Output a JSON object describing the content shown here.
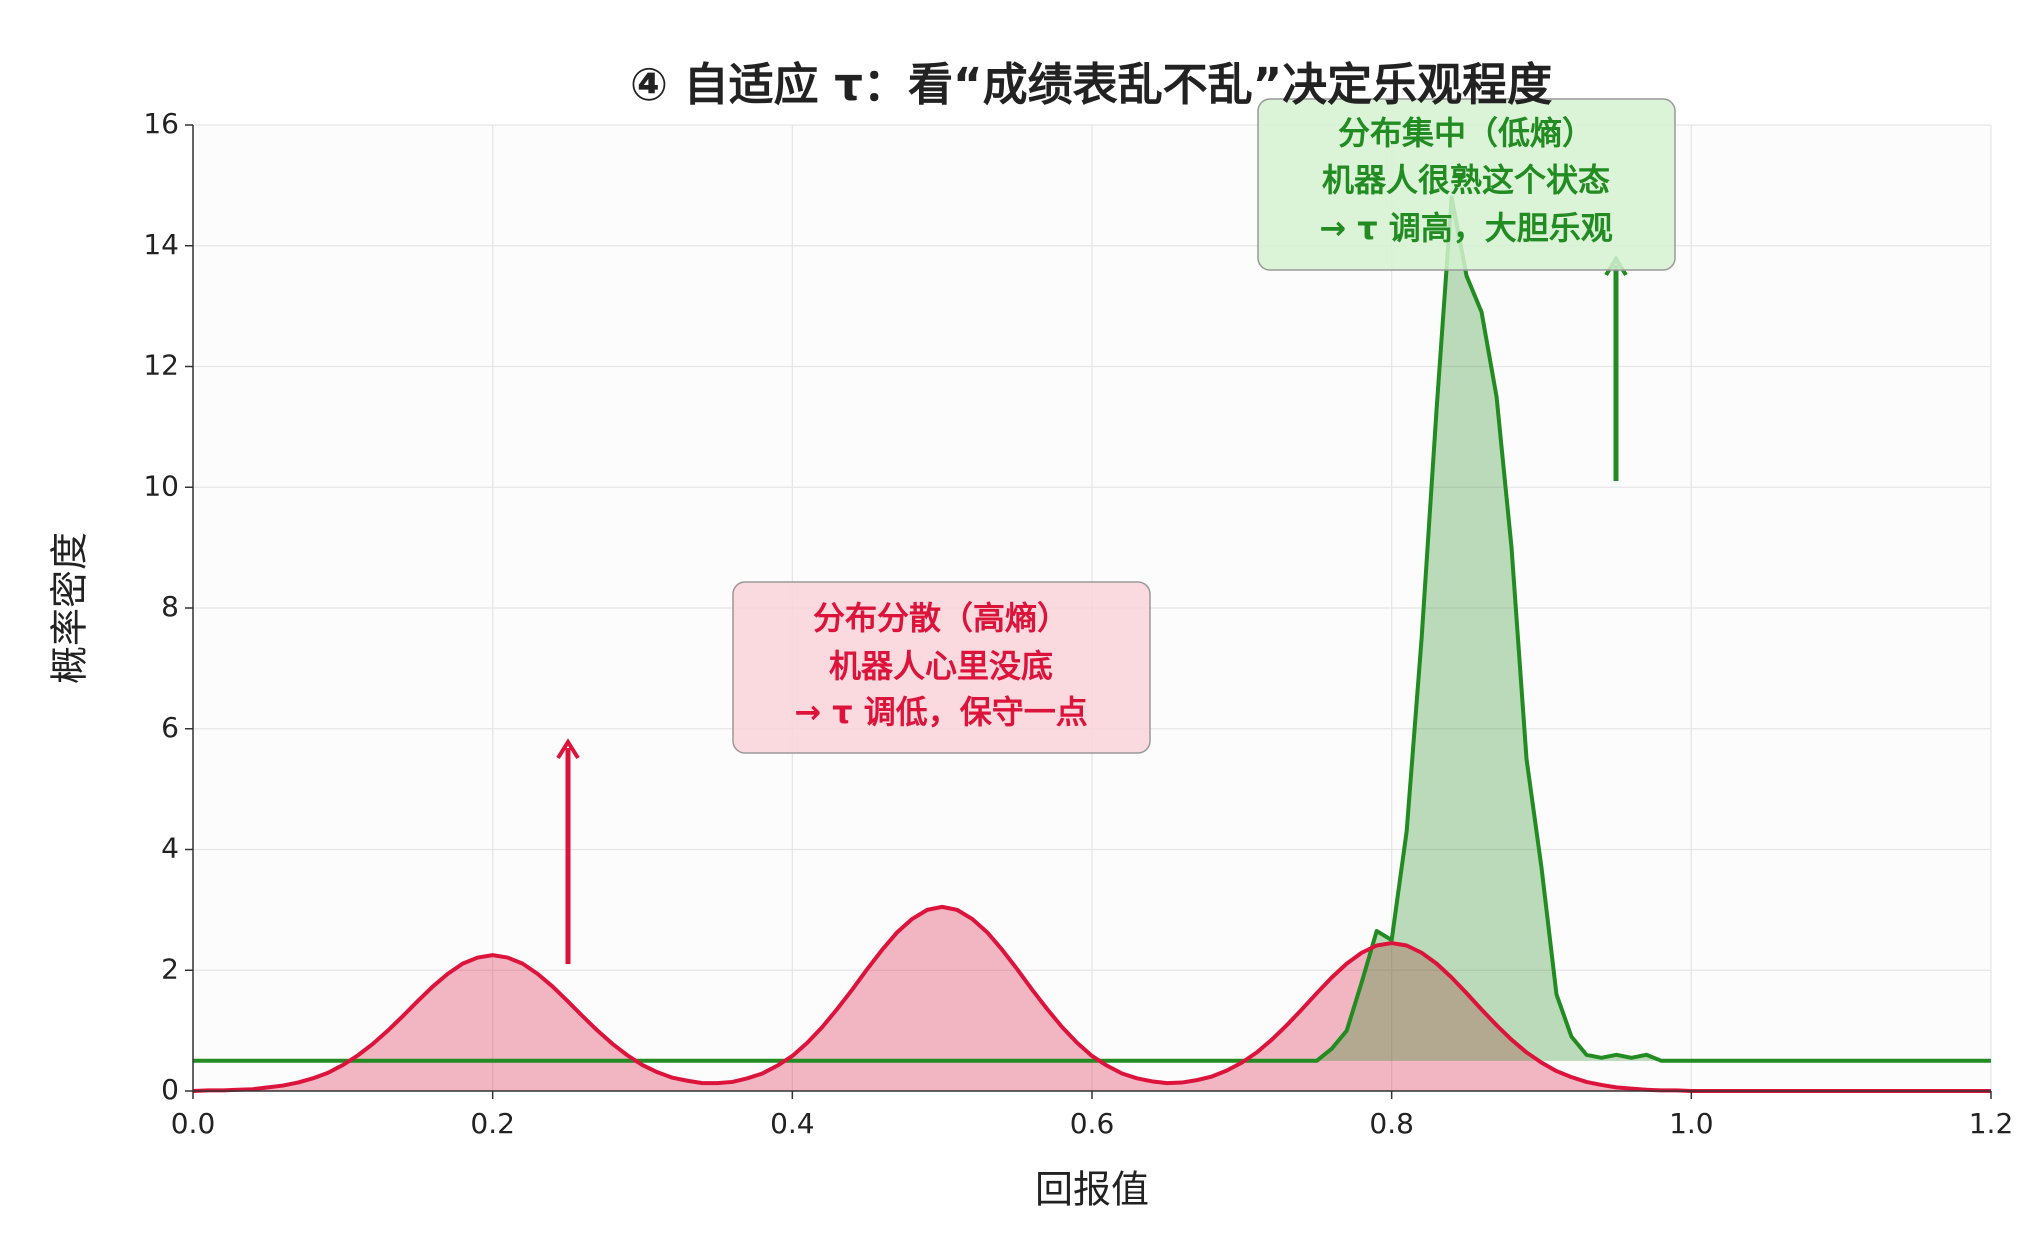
{
  "chart_data": {
    "type": "line",
    "title": "④ 自适应 τ：看“成绩表乱不乱”决定乐观程度",
    "x_label": "回报值",
    "y_label": "概率密度",
    "x": [
      0,
      0.01,
      0.02,
      0.03,
      0.04,
      0.05,
      0.06,
      0.07,
      0.08,
      0.09,
      0.1,
      0.11,
      0.12,
      0.13,
      0.14,
      0.15,
      0.16,
      0.17,
      0.18,
      0.19,
      0.2,
      0.21,
      0.22,
      0.23,
      0.24,
      0.25,
      0.26,
      0.27,
      0.28,
      0.29,
      0.3,
      0.31,
      0.32,
      0.33,
      0.34,
      0.35,
      0.36,
      0.37,
      0.38,
      0.39,
      0.4,
      0.41,
      0.42,
      0.43,
      0.44,
      0.45,
      0.46,
      0.47,
      0.48,
      0.49,
      0.5,
      0.51,
      0.52,
      0.53,
      0.54,
      0.55,
      0.56,
      0.57,
      0.58,
      0.59,
      0.6,
      0.61,
      0.62,
      0.63,
      0.64,
      0.65,
      0.66,
      0.67,
      0.68,
      0.69,
      0.7,
      0.71,
      0.72,
      0.73,
      0.74,
      0.75,
      0.76,
      0.77,
      0.78,
      0.79,
      0.8,
      0.81,
      0.82,
      0.83,
      0.84,
      0.85,
      0.86,
      0.87,
      0.88,
      0.89,
      0.9,
      0.91,
      0.92,
      0.93,
      0.94,
      0.95,
      0.96,
      0.97,
      0.98,
      0.99,
      1,
      1.01,
      1.02,
      1.03,
      1.04,
      1.05,
      1.06,
      1.07,
      1.08,
      1.09,
      1.1,
      1.11,
      1.12,
      1.13,
      1.14,
      1.15,
      1.16,
      1.17,
      1.18,
      1.19,
      1.2
    ],
    "series": [
      {
        "color": "#dc143c",
        "values": [
          0,
          0.01,
          0.01,
          0.02,
          0.03,
          0.06,
          0.09,
          0.14,
          0.21,
          0.3,
          0.43,
          0.59,
          0.78,
          1,
          1.24,
          1.49,
          1.73,
          1.94,
          2.11,
          2.21,
          2.25,
          2.21,
          2.11,
          1.94,
          1.73,
          1.49,
          1.24,
          1,
          0.78,
          0.59,
          0.43,
          0.31,
          0.22,
          0.17,
          0.13,
          0.13,
          0.15,
          0.21,
          0.29,
          0.42,
          0.58,
          0.8,
          1.06,
          1.36,
          1.68,
          2.02,
          2.34,
          2.63,
          2.85,
          3,
          3.05,
          3,
          2.85,
          2.63,
          2.34,
          2.02,
          1.68,
          1.36,
          1.06,
          0.8,
          0.58,
          0.42,
          0.29,
          0.21,
          0.16,
          0.13,
          0.14,
          0.18,
          0.24,
          0.34,
          0.47,
          0.64,
          0.85,
          1.09,
          1.35,
          1.62,
          1.88,
          2.11,
          2.29,
          2.41,
          2.45,
          2.41,
          2.29,
          2.11,
          1.88,
          1.62,
          1.35,
          1.09,
          0.85,
          0.64,
          0.47,
          0.33,
          0.23,
          0.15,
          0.1,
          0.06,
          0.04,
          0.02,
          0.01,
          0.01,
          0,
          0,
          0,
          0,
          0,
          0,
          0,
          0,
          0,
          0,
          0,
          0,
          0,
          0,
          0,
          0,
          0,
          0,
          0,
          0,
          0
        ]
      },
      {
        "color": "#228b22",
        "values": [
          0.5,
          0.5,
          0.5,
          0.5,
          0.5,
          0.5,
          0.5,
          0.5,
          0.5,
          0.5,
          0.5,
          0.5,
          0.5,
          0.5,
          0.5,
          0.5,
          0.5,
          0.5,
          0.5,
          0.5,
          0.5,
          0.5,
          0.5,
          0.5,
          0.5,
          0.5,
          0.5,
          0.5,
          0.5,
          0.5,
          0.5,
          0.5,
          0.5,
          0.5,
          0.5,
          0.5,
          0.5,
          0.5,
          0.5,
          0.5,
          0.5,
          0.5,
          0.5,
          0.5,
          0.5,
          0.5,
          0.5,
          0.5,
          0.5,
          0.5,
          0.5,
          0.5,
          0.5,
          0.5,
          0.5,
          0.5,
          0.5,
          0.5,
          0.5,
          0.5,
          0.5,
          0.5,
          0.5,
          0.5,
          0.5,
          0.5,
          0.5,
          0.5,
          0.5,
          0.5,
          0.5,
          0.5,
          0.5,
          0.5,
          0.5,
          0.5,
          0.7,
          1,
          1.8,
          2.65,
          2.5,
          4.3,
          7.5,
          11.3,
          14.8,
          13.5,
          12.9,
          11.5,
          9,
          5.5,
          3.7,
          1.6,
          0.9,
          0.6,
          0.55,
          0.6,
          0.55,
          0.6,
          0.5,
          0.5,
          0.5,
          0.5,
          0.5,
          0.5,
          0.5,
          0.5,
          0.5,
          0.5,
          0.5,
          0.5,
          0.5,
          0.5,
          0.5,
          0.5,
          0.5,
          0.5,
          0.5,
          0.5,
          0.5,
          0.5,
          0.5
        ]
      }
    ],
    "xlim": [
      0,
      1.2
    ],
    "ylim": [
      0,
      16
    ],
    "xticks": [
      {
        "value": 0,
        "label": "0.0"
      },
      {
        "value": 0.2,
        "label": "0.2"
      },
      {
        "value": 0.4,
        "label": "0.4"
      },
      {
        "value": 0.6,
        "label": "0.6"
      },
      {
        "value": 0.8,
        "label": "0.8"
      },
      {
        "value": 1,
        "label": "1.0"
      },
      {
        "value": 1.2,
        "label": "1.2"
      }
    ],
    "yticks": [
      0,
      2,
      4,
      6,
      8,
      10,
      12,
      14,
      16
    ],
    "grid": true,
    "annotations": [
      {
        "color": "#dc143c",
        "lines": [
          "分布分散（高熵）",
          "机器人心里没底",
          "→ τ 调低，保守一点"
        ]
      },
      {
        "color": "#228b22",
        "lines": [
          "分布集中（低熵）",
          "机器人很熟这个状态",
          "→ τ 调高，大胆乐观"
        ]
      }
    ]
  }
}
